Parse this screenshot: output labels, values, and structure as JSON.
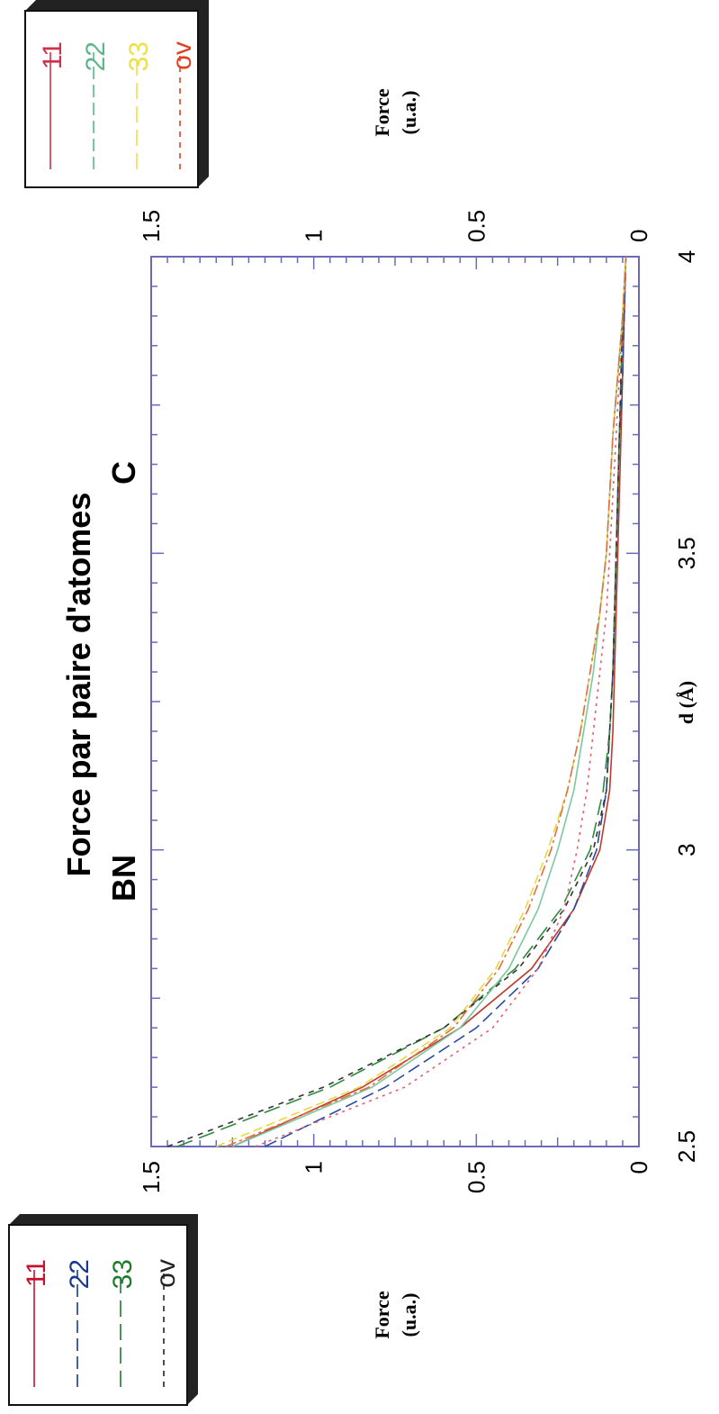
{
  "chart_data": {
    "type": "line",
    "title": "Force par paire d'atomes",
    "groups": [
      "BN",
      "C"
    ],
    "xlabel": "d (Å)",
    "ylabel_line1": "Force",
    "ylabel_line2": "(u.a.)",
    "xlim": [
      2.5,
      4
    ],
    "ylim": [
      0,
      1.5
    ],
    "x_ticks": [
      "2.5",
      "3",
      "3.5",
      "4"
    ],
    "y_ticks": [
      "0",
      "0.5",
      "1",
      "1.5"
    ],
    "grid": false,
    "legends": [
      {
        "group": "BN",
        "placement": "bottom-left",
        "entries": [
          "11",
          "22",
          "33",
          "ov"
        ],
        "colors": [
          "#c8102e",
          "#1a3a8f",
          "#1f7a2e",
          "#222222"
        ]
      },
      {
        "group": "C",
        "placement": "top-right",
        "entries": [
          "11",
          "22",
          "33",
          "ov"
        ],
        "colors": [
          "#d0304a",
          "#5cb88a",
          "#f0e040",
          "#e04020"
        ]
      }
    ],
    "series": [
      {
        "group": "BN",
        "name": "11",
        "color": "#c0392b",
        "dash": "",
        "x": [
          2.5,
          2.6,
          2.7,
          2.8,
          2.9,
          3.0,
          3.1,
          3.2,
          3.3,
          3.4,
          3.5,
          3.6,
          3.7,
          3.8,
          3.9,
          4.0
        ],
        "y": [
          1.25,
          0.85,
          0.55,
          0.33,
          0.2,
          0.12,
          0.09,
          0.08,
          0.075,
          0.07,
          0.065,
          0.06,
          0.055,
          0.05,
          0.045,
          0.04
        ]
      },
      {
        "group": "BN",
        "name": "22",
        "color": "#2b4a9f",
        "dash": "14,6",
        "x": [
          2.5,
          2.6,
          2.7,
          2.8,
          2.9,
          3.0,
          3.1,
          3.2,
          3.3,
          3.4,
          3.5,
          3.6,
          3.7,
          3.8,
          3.9,
          4.0
        ],
        "y": [
          1.15,
          0.78,
          0.5,
          0.31,
          0.2,
          0.13,
          0.1,
          0.09,
          0.08,
          0.075,
          0.07,
          0.065,
          0.06,
          0.05,
          0.045,
          0.04
        ]
      },
      {
        "group": "BN",
        "name": "33",
        "color": "#2e8b3c",
        "dash": "18,8",
        "x": [
          2.5,
          2.6,
          2.7,
          2.8,
          2.9,
          3.0,
          3.1,
          3.2,
          3.3,
          3.4,
          3.5,
          3.6,
          3.7,
          3.8,
          3.9,
          4.0
        ],
        "y": [
          1.42,
          0.95,
          0.6,
          0.38,
          0.24,
          0.15,
          0.11,
          0.09,
          0.08,
          0.075,
          0.07,
          0.065,
          0.06,
          0.055,
          0.05,
          0.04
        ]
      },
      {
        "group": "BN",
        "name": "ov",
        "color": "#333333",
        "dash": "6,6",
        "x": [
          2.5,
          2.6,
          2.7,
          2.8,
          2.9,
          3.0,
          3.1,
          3.2,
          3.3,
          3.4,
          3.5,
          3.6,
          3.7,
          3.8,
          3.9,
          4.0
        ],
        "y": [
          1.45,
          0.97,
          0.6,
          0.37,
          0.23,
          0.14,
          0.1,
          0.09,
          0.08,
          0.075,
          0.07,
          0.065,
          0.06,
          0.055,
          0.05,
          0.04
        ]
      },
      {
        "group": "C",
        "name": "11",
        "color": "#e06070",
        "dash": "3,5",
        "x": [
          2.5,
          2.6,
          2.7,
          2.8,
          2.9,
          3.0,
          3.1,
          3.2,
          3.3,
          3.4,
          3.5,
          3.6,
          3.7,
          3.8,
          3.9,
          4.0
        ],
        "y": [
          1.18,
          0.72,
          0.45,
          0.31,
          0.23,
          0.19,
          0.16,
          0.14,
          0.12,
          0.1,
          0.09,
          0.08,
          0.07,
          0.06,
          0.05,
          0.04
        ]
      },
      {
        "group": "C",
        "name": "22",
        "color": "#7cc8a0",
        "dash": "",
        "x": [
          2.5,
          2.6,
          2.7,
          2.8,
          2.9,
          3.0,
          3.1,
          3.2,
          3.3,
          3.4,
          3.5,
          3.6,
          3.7,
          3.8,
          3.9,
          4.0
        ],
        "y": [
          1.25,
          0.82,
          0.55,
          0.4,
          0.31,
          0.25,
          0.2,
          0.17,
          0.14,
          0.12,
          0.1,
          0.09,
          0.08,
          0.065,
          0.05,
          0.04
        ]
      },
      {
        "group": "C",
        "name": "33",
        "color": "#e8d840",
        "dash": "10,5",
        "x": [
          2.5,
          2.6,
          2.7,
          2.8,
          2.9,
          3.0,
          3.1,
          3.2,
          3.3,
          3.4,
          3.5,
          3.6,
          3.7,
          3.8,
          3.9,
          4.0
        ],
        "y": [
          1.3,
          0.86,
          0.58,
          0.44,
          0.35,
          0.28,
          0.22,
          0.18,
          0.15,
          0.12,
          0.1,
          0.09,
          0.08,
          0.065,
          0.05,
          0.04
        ]
      },
      {
        "group": "C",
        "name": "ov",
        "color": "#e07040",
        "dash": "12,4,3,4",
        "x": [
          2.5,
          2.6,
          2.7,
          2.8,
          2.9,
          3.0,
          3.1,
          3.2,
          3.3,
          3.4,
          3.5,
          3.6,
          3.7,
          3.8,
          3.9,
          4.0
        ],
        "y": [
          1.27,
          0.83,
          0.57,
          0.43,
          0.34,
          0.27,
          0.22,
          0.18,
          0.15,
          0.12,
          0.1,
          0.09,
          0.08,
          0.065,
          0.05,
          0.04
        ]
      }
    ]
  }
}
